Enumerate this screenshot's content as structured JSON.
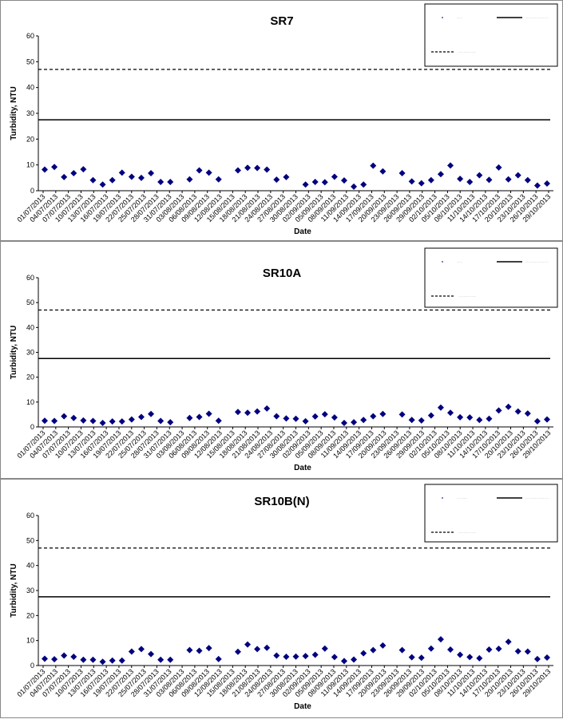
{
  "chart_data": [
    {
      "type": "scatter",
      "title": "SR7",
      "xlabel": "Date",
      "ylabel": "Turbidity, NTU",
      "ylim": [
        0,
        60
      ],
      "yticks": [
        0,
        10,
        20,
        30,
        40,
        50,
        60
      ],
      "x_tick_labels": [
        "01/07/2013",
        "04/07/2013",
        "07/07/2013",
        "10/07/2013",
        "13/07/2013",
        "16/07/2013",
        "19/07/2013",
        "22/07/2013",
        "25/07/2013",
        "28/07/2013",
        "31/07/2013",
        "03/08/2013",
        "06/08/2013",
        "09/08/2013",
        "12/08/2013",
        "15/08/2013",
        "18/08/2013",
        "21/08/2013",
        "24/08/2013",
        "27/08/2013",
        "30/08/2013",
        "02/09/2013",
        "05/09/2013",
        "08/09/2013",
        "11/09/2013",
        "14/09/2013",
        "17/09/2013",
        "20/09/2013",
        "23/09/2013",
        "26/09/2013",
        "29/09/2013",
        "02/10/2013",
        "05/10/2013",
        "08/10/2013",
        "11/10/2013",
        "14/10/2013",
        "17/10/2013",
        "20/10/2013",
        "23/10/2013",
        "26/10/2013",
        "29/10/2013"
      ],
      "legend_position": "top-right",
      "legend_entries": [
        "......",
        "..........................",
        "...................."
      ],
      "series": [
        {
          "values": [
            [
              0,
              8.2
            ],
            [
              1,
              9.2
            ],
            [
              2,
              5.3
            ],
            [
              3,
              6.8
            ],
            [
              4,
              8.3
            ],
            [
              5,
              4.1
            ],
            [
              6,
              2.4
            ],
            [
              7,
              4.1
            ],
            [
              8,
              7
            ],
            [
              9,
              5.4
            ],
            [
              10,
              5
            ],
            [
              11,
              6.8
            ],
            [
              12,
              3.4
            ],
            [
              13,
              3.4
            ],
            [
              15,
              4.4
            ],
            [
              16,
              7.9
            ],
            [
              17,
              7
            ],
            [
              18,
              4.4
            ],
            [
              20,
              7.9
            ],
            [
              21,
              8.9
            ],
            [
              22,
              8.8
            ],
            [
              23,
              8.2
            ],
            [
              24,
              4.3
            ],
            [
              25,
              5.3
            ],
            [
              27,
              2.4
            ],
            [
              28,
              3.4
            ],
            [
              29,
              3.3
            ],
            [
              30,
              5.4
            ],
            [
              31,
              4
            ],
            [
              32,
              1.6
            ],
            [
              33,
              2.4
            ],
            [
              34,
              9.7
            ],
            [
              35,
              7.5
            ],
            [
              37,
              6.8
            ],
            [
              38,
              3.6
            ],
            [
              39,
              2.9
            ],
            [
              40,
              4.1
            ],
            [
              41,
              6.4
            ],
            [
              42,
              9.8
            ],
            [
              43,
              4.6
            ],
            [
              44,
              3.4
            ],
            [
              45,
              6
            ],
            [
              46,
              4.2
            ],
            [
              47,
              9
            ],
            [
              48,
              4.4
            ],
            [
              49,
              6
            ],
            [
              50,
              4.1
            ],
            [
              51,
              2
            ],
            [
              52,
              2.8
            ]
          ]
        }
      ],
      "reference_lines": [
        {
          "value": 47,
          "style": "dashed"
        },
        {
          "value": 27.5,
          "style": "solid"
        }
      ]
    },
    {
      "type": "scatter",
      "title": "SR10A",
      "xlabel": "Date",
      "ylabel": "Turbidity, NTU",
      "ylim": [
        0,
        60
      ],
      "yticks": [
        0,
        10,
        20,
        30,
        40,
        50,
        60
      ],
      "x_tick_labels": [
        "01/07/2013",
        "04/07/2013",
        "07/07/2013",
        "10/07/2013",
        "13/07/2013",
        "16/07/2013",
        "19/07/2013",
        "22/07/2013",
        "25/07/2013",
        "28/07/2013",
        "31/07/2013",
        "03/08/2013",
        "06/08/2013",
        "09/08/2013",
        "12/08/2013",
        "15/08/2013",
        "18/08/2013",
        "21/08/2013",
        "24/08/2013",
        "27/08/2013",
        "30/08/2013",
        "02/09/2013",
        "05/09/2013",
        "08/09/2013",
        "11/09/2013",
        "14/09/2013",
        "17/09/2013",
        "20/09/2013",
        "23/09/2013",
        "26/09/2013",
        "29/09/2013",
        "02/10/2013",
        "05/10/2013",
        "08/10/2013",
        "11/10/2013",
        "14/10/2013",
        "17/10/2013",
        "20/10/2013",
        "23/10/2013",
        "26/10/2013",
        "29/10/2013"
      ],
      "legend_position": "top-right",
      "legend_entries": [
        "......",
        "..........................",
        "...................."
      ],
      "series": [
        {
          "values": [
            [
              0,
              2.5
            ],
            [
              1,
              2.4
            ],
            [
              2,
              4.3
            ],
            [
              3,
              3.6
            ],
            [
              4,
              2.6
            ],
            [
              5,
              2.4
            ],
            [
              6,
              1.6
            ],
            [
              7,
              2.2
            ],
            [
              8,
              2.2
            ],
            [
              9,
              3
            ],
            [
              10,
              4
            ],
            [
              11,
              5.2
            ],
            [
              12,
              2.4
            ],
            [
              13,
              1.9
            ],
            [
              15,
              3.6
            ],
            [
              16,
              4
            ],
            [
              17,
              5.3
            ],
            [
              18,
              2.5
            ],
            [
              20,
              6
            ],
            [
              21,
              5.7
            ],
            [
              22,
              6.2
            ],
            [
              23,
              7.4
            ],
            [
              24,
              4.3
            ],
            [
              25,
              3.4
            ],
            [
              26,
              3.3
            ],
            [
              27,
              2.3
            ],
            [
              28,
              4.2
            ],
            [
              29,
              5.1
            ],
            [
              30,
              3.8
            ],
            [
              31,
              1.6
            ],
            [
              32,
              1.9
            ],
            [
              33,
              2.8
            ],
            [
              34,
              4.3
            ],
            [
              35,
              5.2
            ],
            [
              37,
              5
            ],
            [
              38,
              2.8
            ],
            [
              39,
              2.6
            ],
            [
              40,
              4.6
            ],
            [
              41,
              7.8
            ],
            [
              42,
              5.7
            ],
            [
              43,
              3.9
            ],
            [
              44,
              3.8
            ],
            [
              45,
              2.8
            ],
            [
              46,
              3.3
            ],
            [
              47,
              6.6
            ],
            [
              48,
              8.1
            ],
            [
              49,
              6.2
            ],
            [
              50,
              5.4
            ],
            [
              51,
              2.3
            ],
            [
              52,
              3
            ]
          ]
        }
      ],
      "reference_lines": [
        {
          "value": 47,
          "style": "dashed"
        },
        {
          "value": 27.5,
          "style": "solid"
        }
      ]
    },
    {
      "type": "scatter",
      "title": "SR10B(N)",
      "xlabel": "Date",
      "ylabel": "Turbidity, NTU",
      "ylim": [
        0,
        60
      ],
      "yticks": [
        0,
        10,
        20,
        30,
        40,
        50,
        60
      ],
      "x_tick_labels": [
        "01/07/2013",
        "04/07/2013",
        "07/07/2013",
        "10/07/2013",
        "13/07/2013",
        "16/07/2013",
        "19/07/2013",
        "22/07/2013",
        "25/07/2013",
        "28/07/2013",
        "31/07/2013",
        "03/08/2013",
        "06/08/2013",
        "09/08/2013",
        "12/08/2013",
        "15/08/2013",
        "18/08/2013",
        "21/08/2013",
        "24/08/2013",
        "27/08/2013",
        "30/08/2013",
        "02/09/2013",
        "05/09/2013",
        "08/09/2013",
        "11/09/2013",
        "14/09/2013",
        "17/09/2013",
        "20/09/2013",
        "23/09/2013",
        "26/09/2013",
        "29/09/2013",
        "02/10/2013",
        "05/10/2013",
        "08/10/2013",
        "11/10/2013",
        "14/10/2013",
        "17/10/2013",
        "20/10/2013",
        "23/10/2013",
        "26/10/2013",
        "29/10/2013"
      ],
      "legend_position": "top-right",
      "legend_entries": [
        "............",
        "..........................",
        "...................."
      ],
      "series": [
        {
          "values": [
            [
              0,
              2.7
            ],
            [
              1,
              2.5
            ],
            [
              2,
              4
            ],
            [
              3,
              3.5
            ],
            [
              4,
              2.3
            ],
            [
              5,
              2.3
            ],
            [
              6,
              1.5
            ],
            [
              7,
              2
            ],
            [
              8,
              2
            ],
            [
              9,
              5.6
            ],
            [
              10,
              6.6
            ],
            [
              11,
              4.6
            ],
            [
              12,
              2.3
            ],
            [
              13,
              2.3
            ],
            [
              15,
              6.2
            ],
            [
              16,
              5.9
            ],
            [
              17,
              7
            ],
            [
              18,
              2.6
            ],
            [
              20,
              5.5
            ],
            [
              21,
              8.4
            ],
            [
              22,
              6.6
            ],
            [
              23,
              7.1
            ],
            [
              24,
              4
            ],
            [
              25,
              3.5
            ],
            [
              26,
              3.6
            ],
            [
              27,
              3.8
            ],
            [
              28,
              4.3
            ],
            [
              29,
              6.8
            ],
            [
              30,
              3.4
            ],
            [
              31,
              1.8
            ],
            [
              32,
              2.4
            ],
            [
              33,
              4.9
            ],
            [
              34,
              6.2
            ],
            [
              35,
              8
            ],
            [
              37,
              6.2
            ],
            [
              38,
              3.3
            ],
            [
              39,
              3.1
            ],
            [
              40,
              6.8
            ],
            [
              41,
              10.5
            ],
            [
              42,
              6.4
            ],
            [
              43,
              4.3
            ],
            [
              44,
              3.4
            ],
            [
              45,
              2.9
            ],
            [
              46,
              6.4
            ],
            [
              47,
              6.7
            ],
            [
              48,
              9.5
            ],
            [
              49,
              5.7
            ],
            [
              50,
              5.6
            ],
            [
              51,
              2.6
            ],
            [
              52,
              3.2
            ]
          ]
        }
      ],
      "reference_lines": [
        {
          "value": 47,
          "style": "dashed"
        },
        {
          "value": 27.5,
          "style": "solid"
        }
      ]
    }
  ]
}
